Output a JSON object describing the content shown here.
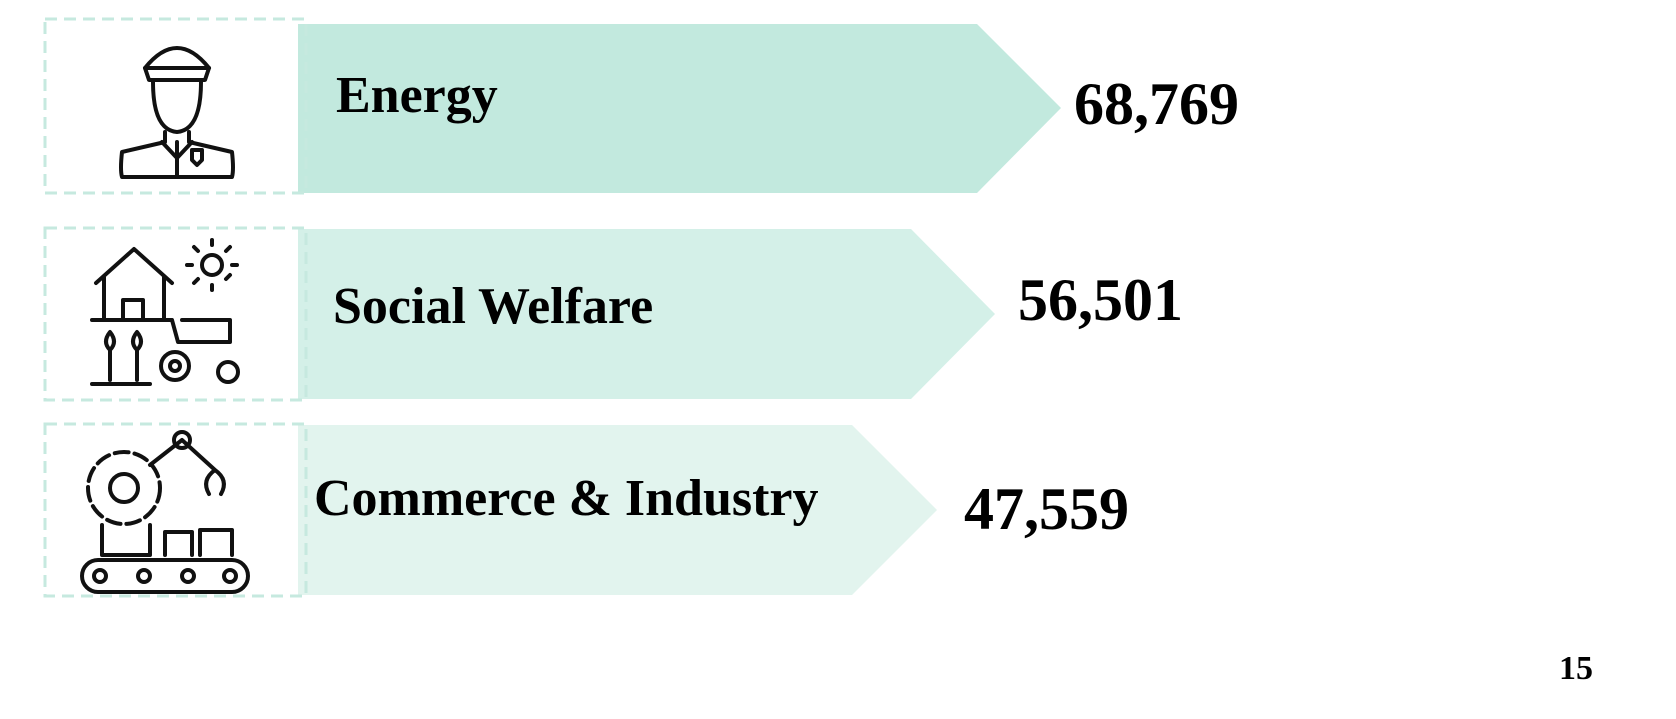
{
  "items": [
    {
      "label": "Energy",
      "value": "68,769"
    },
    {
      "label": "Social Welfare",
      "value": "56,501"
    },
    {
      "label": "Commerce & Industry",
      "value": "47,559"
    }
  ],
  "page_number": "15"
}
